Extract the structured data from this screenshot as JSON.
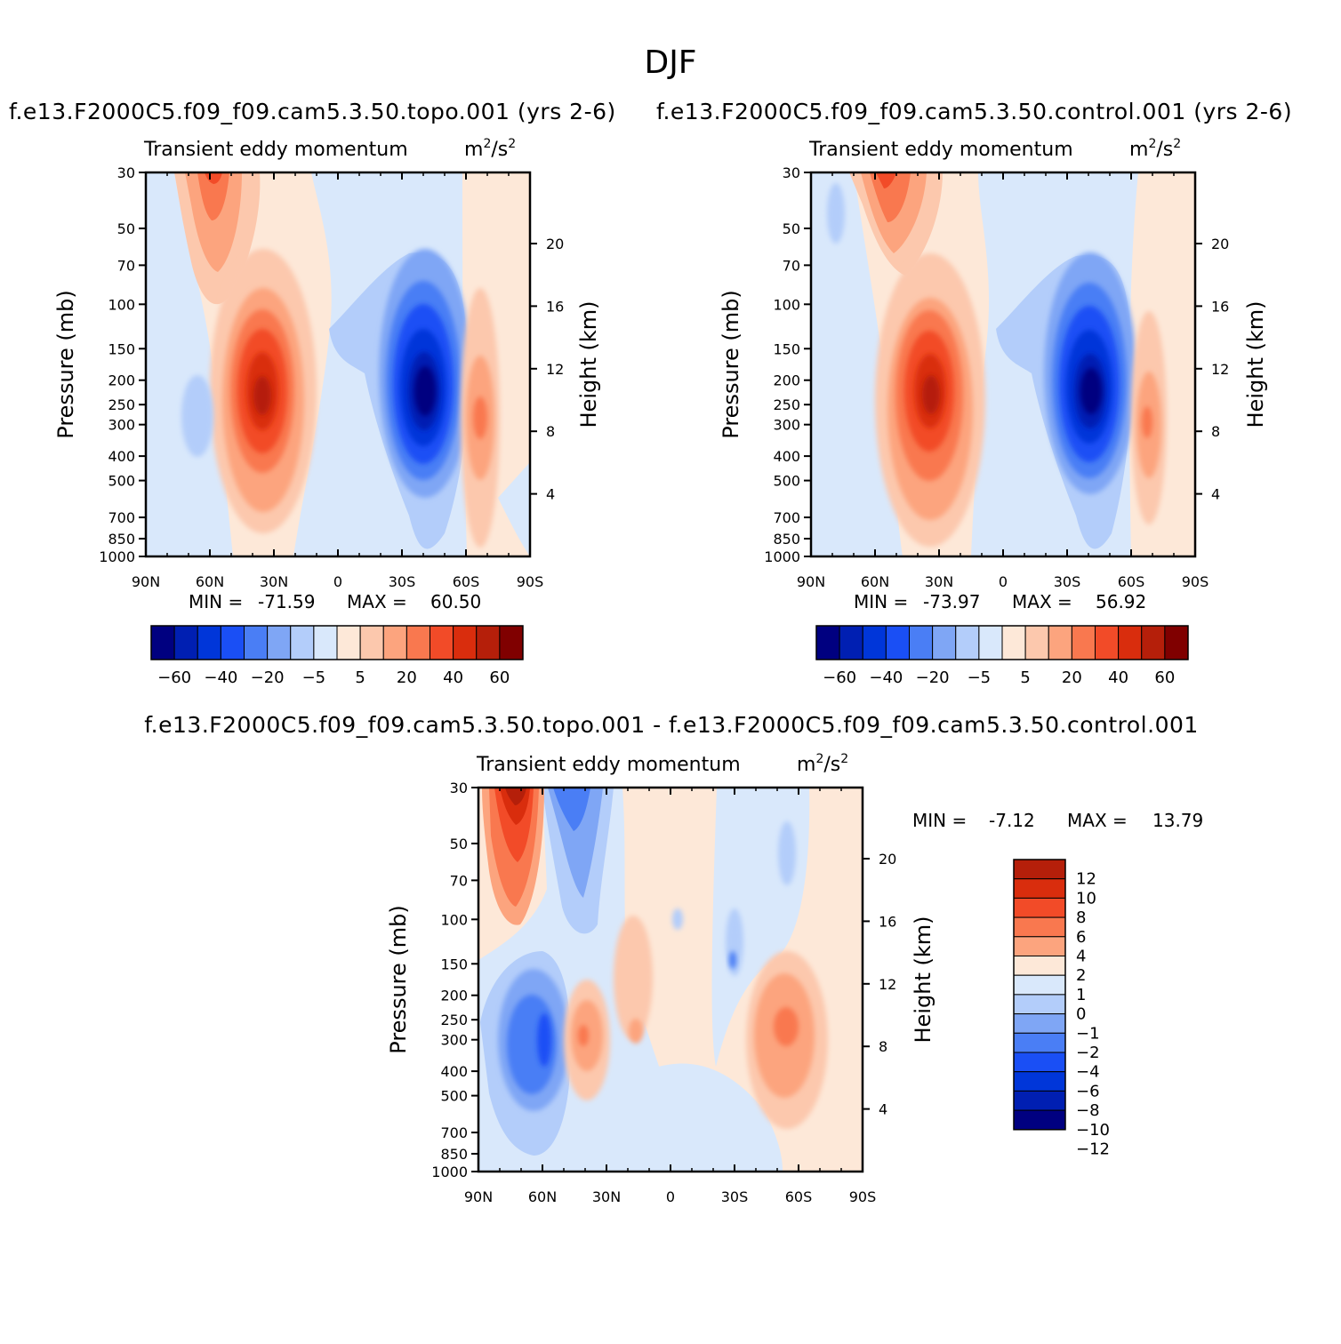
{
  "figure": {
    "title": "DJF",
    "colors": {
      "topo_scale": [
        "#000080",
        "#001fb2",
        "#0036d9",
        "#1a4ff5",
        "#4a7ef5",
        "#7fa6f5",
        "#b3cdfa",
        "#d9e8fb",
        "#fde8d8",
        "#fcc8ad",
        "#fca47e",
        "#f9784f",
        "#f24b28",
        "#d92d0d",
        "#b51f0a",
        "#800000"
      ],
      "diff_scale": [
        "#000080",
        "#001fb2",
        "#0036d9",
        "#1a4ff5",
        "#4a7ef5",
        "#7fa6f5",
        "#b3cdfa",
        "#d9e8fb",
        "#fde8d8",
        "#fca47e",
        "#f9784f",
        "#f24b28",
        "#d92d0d",
        "#b51f0a"
      ]
    }
  },
  "panels": [
    {
      "id": "topo",
      "title": "f.e13.F2000C5.f09_f09.cam5.3.50.topo.001  (yrs 2-6)",
      "variable": "Transient  eddy  momentum",
      "units_base": "m",
      "units_mid": "/s",
      "units_exp": "2",
      "ylabel": "Pressure  (mb)",
      "y2label": "Height  (km)",
      "min_label": "MIN  =",
      "min_value": "-71.59",
      "max_label": "MAX  =",
      "max_value": "60.50"
    },
    {
      "id": "control",
      "title": "f.e13.F2000C5.f09_f09.cam5.3.50.control.001  (yrs 2-6)",
      "variable": "Transient  eddy  momentum",
      "units_base": "m",
      "units_mid": "/s",
      "units_exp": "2",
      "ylabel": "Pressure  (mb)",
      "y2label": "Height  (km)",
      "min_label": "MIN  =",
      "min_value": "-73.97",
      "max_label": "MAX  =",
      "max_value": "56.92"
    },
    {
      "id": "diff",
      "title": "f.e13.F2000C5.f09_f09.cam5.3.50.topo.001  -  f.e13.F2000C5.f09_f09.cam5.3.50.control.001",
      "variable": "Transient  eddy  momentum",
      "units_base": "m",
      "units_mid": "/s",
      "units_exp": "2",
      "ylabel": "Pressure  (mb)",
      "y2label": "Height  (km)",
      "min_label": "MIN  =",
      "min_value": "-7.12",
      "max_label": "MAX  =",
      "max_value": "13.79"
    }
  ],
  "colorbars": {
    "top_labels": [
      "-60",
      "-40",
      "-20",
      "-5",
      "5",
      "20",
      "40",
      "60"
    ],
    "diff_labels": [
      "12",
      "10",
      "8",
      "6",
      "4",
      "2",
      "1",
      "0",
      "-1",
      "-2",
      "-4",
      "-6",
      "-8",
      "-10",
      "-12"
    ]
  },
  "chart_data": [
    {
      "type": "heatmap",
      "title": "f.e13.F2000C5.f09_f09.cam5.3.50.topo.001  (yrs 2-6)",
      "subtitle": "Transient eddy momentum m^2/s^2",
      "x_tick_labels": [
        "90N",
        "60N",
        "30N",
        "0",
        "30S",
        "60S",
        "90S"
      ],
      "x_ticks": [
        90,
        60,
        30,
        0,
        -30,
        -60,
        -90
      ],
      "y_tick_labels": [
        "30",
        "50",
        "70",
        "100",
        "150",
        "200",
        "250",
        "300",
        "400",
        "500",
        "700",
        "850",
        "1000"
      ],
      "y_ticks": [
        30,
        50,
        70,
        100,
        150,
        200,
        250,
        300,
        400,
        500,
        700,
        850,
        1000
      ],
      "y2_tick_labels": [
        "20",
        "16",
        "12",
        "8",
        "4"
      ],
      "ylim": [
        1000,
        30
      ],
      "xlim": [
        90,
        -90
      ],
      "levels": [
        -70,
        -60,
        -50,
        -40,
        -30,
        -20,
        -10,
        -5,
        0,
        5,
        10,
        20,
        30,
        40,
        50,
        60,
        70
      ],
      "min": -71.59,
      "max": 60.5,
      "features": [
        {
          "lat": 60,
          "p": 40,
          "value": 40
        },
        {
          "lat": 35,
          "p": 250,
          "value": 60
        },
        {
          "lat": -40,
          "p": 230,
          "value": -70
        },
        {
          "lat": -67,
          "p": 280,
          "value": 30
        },
        {
          "lat": 60,
          "p": 270,
          "value": -5
        }
      ]
    },
    {
      "type": "heatmap",
      "title": "f.e13.F2000C5.f09_f09.cam5.3.50.control.001  (yrs 2-6)",
      "subtitle": "Transient eddy momentum m^2/s^2",
      "x_tick_labels": [
        "90N",
        "60N",
        "30N",
        "0",
        "30S",
        "60S",
        "90S"
      ],
      "x_ticks": [
        90,
        60,
        30,
        0,
        -30,
        -60,
        -90
      ],
      "y_tick_labels": [
        "30",
        "50",
        "70",
        "100",
        "150",
        "200",
        "250",
        "300",
        "400",
        "500",
        "700",
        "850",
        "1000"
      ],
      "y_ticks": [
        30,
        50,
        70,
        100,
        150,
        200,
        250,
        300,
        400,
        500,
        700,
        850,
        1000
      ],
      "y2_tick_labels": [
        "20",
        "16",
        "12",
        "8",
        "4"
      ],
      "ylim": [
        1000,
        30
      ],
      "xlim": [
        90,
        -90
      ],
      "levels": [
        -70,
        -60,
        -50,
        -40,
        -30,
        -20,
        -10,
        -5,
        0,
        5,
        10,
        20,
        30,
        40,
        50,
        60,
        70
      ],
      "min": -73.97,
      "max": 56.92,
      "features": [
        {
          "lat": 55,
          "p": 40,
          "value": 40
        },
        {
          "lat": 33,
          "p": 230,
          "value": 55
        },
        {
          "lat": -42,
          "p": 230,
          "value": -70
        },
        {
          "lat": -68,
          "p": 300,
          "value": 25
        }
      ]
    },
    {
      "type": "heatmap",
      "title": "f.e13.F2000C5.f09_f09.cam5.3.50.topo.001  -  f.e13.F2000C5.f09_f09.cam5.3.50.control.001",
      "subtitle": "Transient eddy momentum m^2/s^2",
      "x_tick_labels": [
        "90N",
        "60N",
        "30N",
        "0",
        "30S",
        "60S",
        "90S"
      ],
      "x_ticks": [
        90,
        60,
        30,
        0,
        -30,
        -60,
        -90
      ],
      "y_tick_labels": [
        "30",
        "50",
        "70",
        "100",
        "150",
        "200",
        "250",
        "300",
        "400",
        "500",
        "700",
        "850",
        "1000"
      ],
      "y_ticks": [
        30,
        50,
        70,
        100,
        150,
        200,
        250,
        300,
        400,
        500,
        700,
        850,
        1000
      ],
      "y2_tick_labels": [
        "20",
        "16",
        "12",
        "8",
        "4"
      ],
      "ylim": [
        1000,
        30
      ],
      "xlim": [
        90,
        -90
      ],
      "levels": [
        -14,
        -12,
        -10,
        -8,
        -6,
        -4,
        -2,
        -1,
        0,
        1,
        2,
        4,
        6,
        8,
        10,
        12,
        14
      ],
      "min": -7.12,
      "max": 13.79,
      "features": [
        {
          "lat": 75,
          "p": 40,
          "value": 13
        },
        {
          "lat": 55,
          "p": 60,
          "value": -6
        },
        {
          "lat": 60,
          "p": 300,
          "value": -7
        },
        {
          "lat": 40,
          "p": 300,
          "value": 6
        },
        {
          "lat": 20,
          "p": 250,
          "value": 3
        },
        {
          "lat": -55,
          "p": 260,
          "value": 6
        },
        {
          "lat": -30,
          "p": 150,
          "value": -3
        }
      ]
    }
  ]
}
